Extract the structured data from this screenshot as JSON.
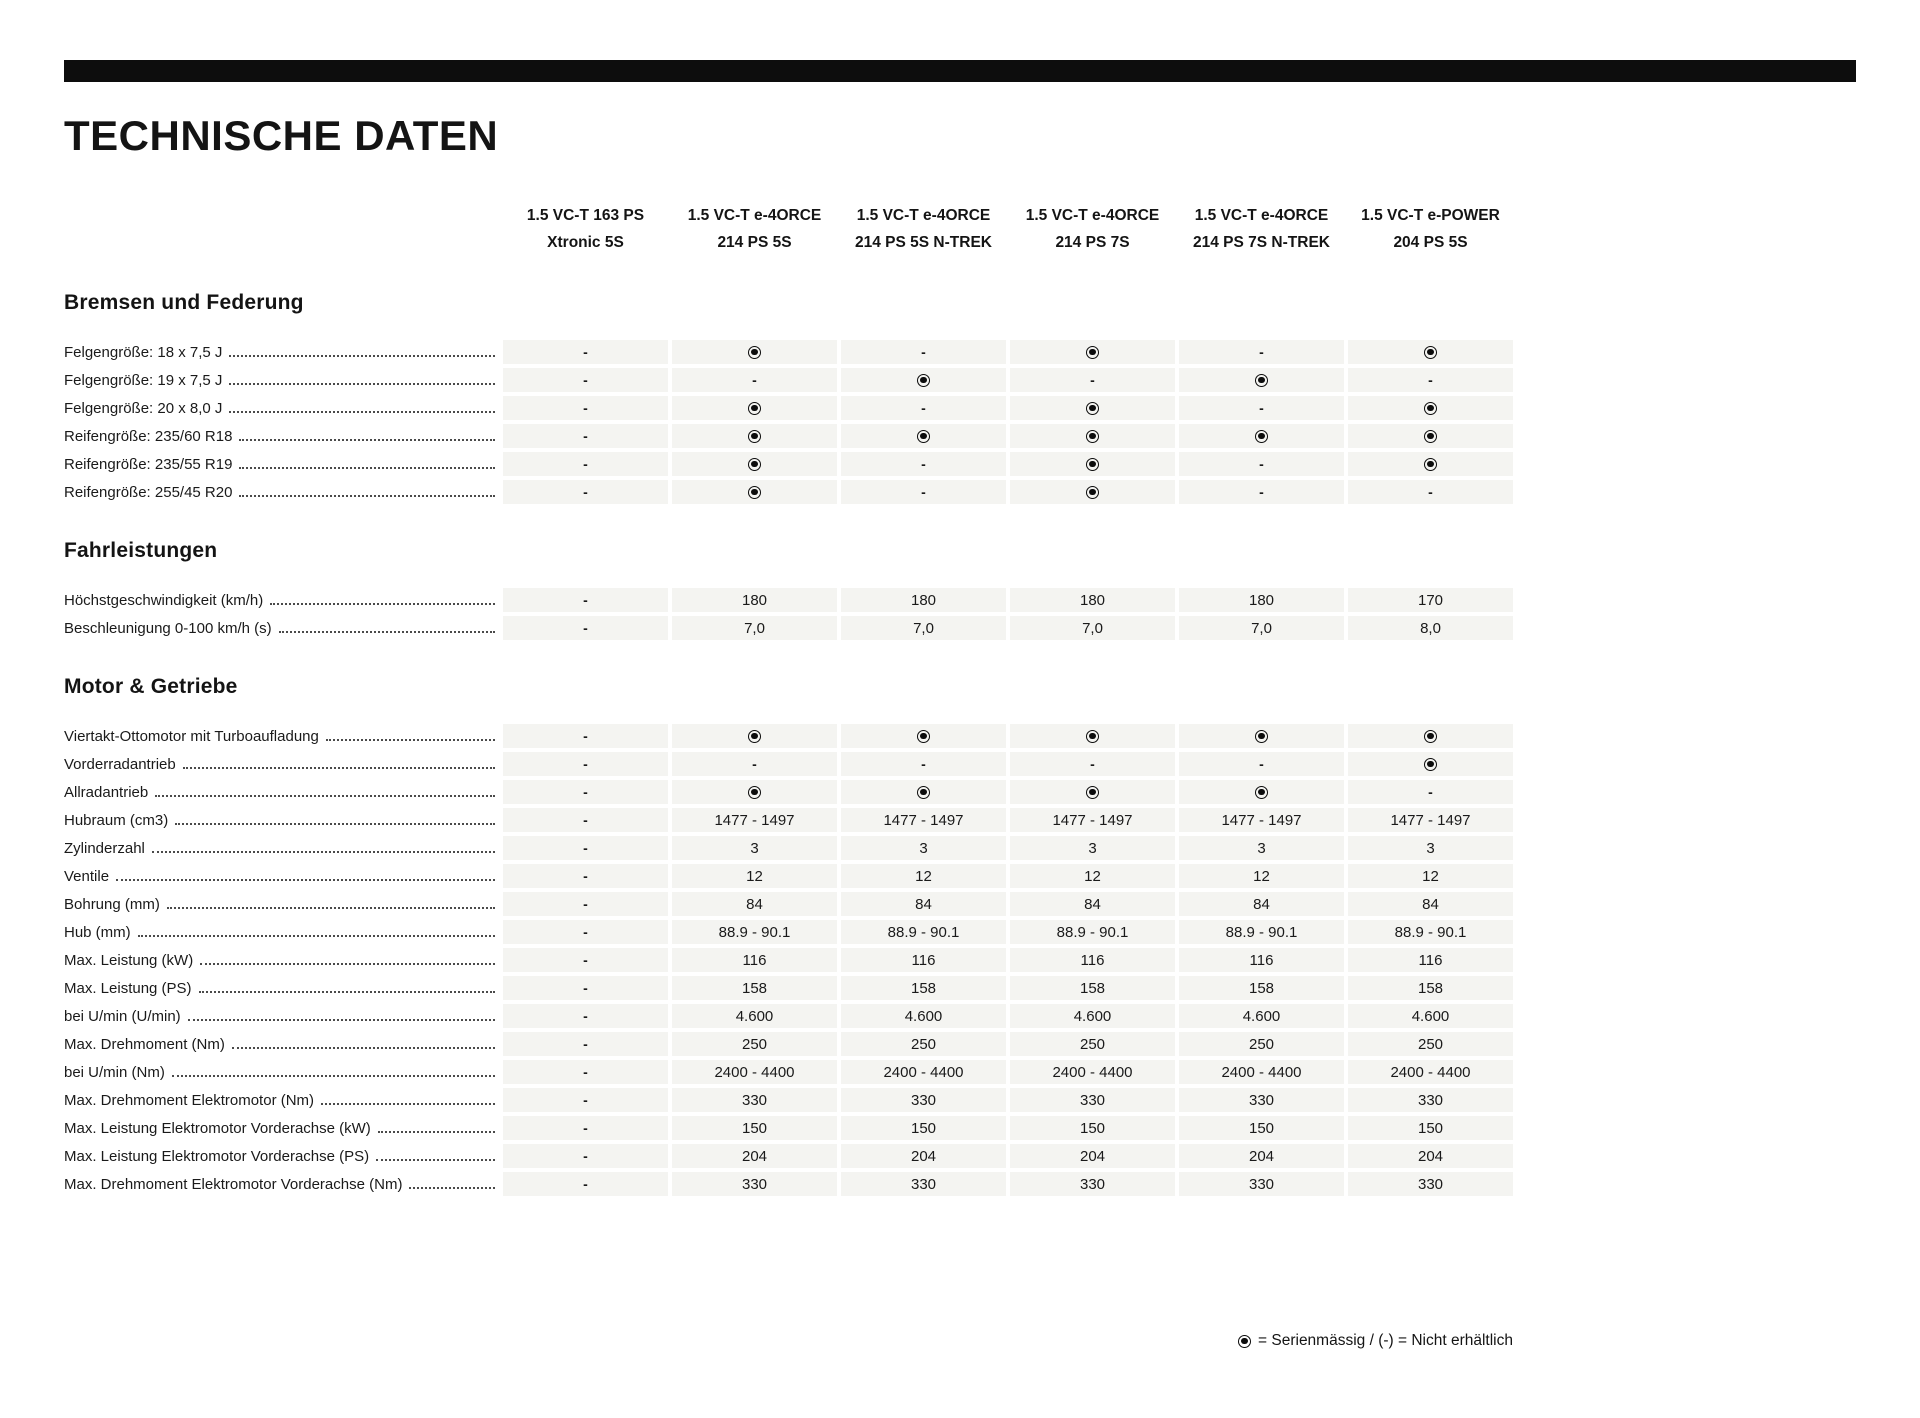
{
  "page": {
    "title": "TECHNISCHE DATEN",
    "legend_text": "= Serienmässig / (-) = Nicht erhältlich"
  },
  "icons": {
    "standard_equipment": "filled-radio-dot"
  },
  "colors": {
    "top_bar": "#0d0d0d",
    "cell_background": "#f4f4f1",
    "text": "#1a1a1a"
  },
  "symbols": {
    "standard": "dot",
    "not_available": "-"
  },
  "columns": [
    {
      "line1": "1.5 VC-T 163 PS",
      "line2": "Xtronic 5S"
    },
    {
      "line1": "1.5 VC-T e-4ORCE",
      "line2": "214 PS 5S"
    },
    {
      "line1": "1.5 VC-T e-4ORCE",
      "line2": "214 PS 5S N-TREK"
    },
    {
      "line1": "1.5 VC-T e-4ORCE",
      "line2": "214 PS 7S"
    },
    {
      "line1": "1.5 VC-T e-4ORCE",
      "line2": "214 PS 7S N-TREK"
    },
    {
      "line1": "1.5 VC-T e-POWER",
      "line2": "204 PS 5S"
    }
  ],
  "sections": [
    {
      "title": "Bremsen und Federung",
      "rows": [
        {
          "label": "Felgengröße: 18 x 7,5 J",
          "values": [
            "-",
            "dot",
            "-",
            "dot",
            "-",
            "dot"
          ]
        },
        {
          "label": "Felgengröße: 19 x 7,5 J",
          "values": [
            "-",
            "-",
            "dot",
            "-",
            "dot",
            "-"
          ]
        },
        {
          "label": "Felgengröße: 20 x 8,0 J",
          "values": [
            "-",
            "dot",
            "-",
            "dot",
            "-",
            "dot"
          ]
        },
        {
          "label": "Reifengröße: 235/60 R18",
          "values": [
            "-",
            "dot",
            "dot",
            "dot",
            "dot",
            "dot"
          ]
        },
        {
          "label": "Reifengröße: 235/55 R19",
          "values": [
            "-",
            "dot",
            "-",
            "dot",
            "-",
            "dot"
          ]
        },
        {
          "label": "Reifengröße: 255/45 R20",
          "values": [
            "-",
            "dot",
            "-",
            "dot",
            "-",
            "-"
          ]
        }
      ]
    },
    {
      "title": "Fahrleistungen",
      "rows": [
        {
          "label": "Höchstgeschwindigkeit (km/h)",
          "values": [
            "-",
            "180",
            "180",
            "180",
            "180",
            "170"
          ]
        },
        {
          "label": "Beschleunigung 0-100 km/h (s)",
          "values": [
            "-",
            "7,0",
            "7,0",
            "7,0",
            "7,0",
            "8,0"
          ]
        }
      ]
    },
    {
      "title": "Motor & Getriebe",
      "rows": [
        {
          "label": "Viertakt-Ottomotor mit Turboaufladung",
          "values": [
            "-",
            "dot",
            "dot",
            "dot",
            "dot",
            "dot"
          ]
        },
        {
          "label": "Vorderradantrieb",
          "values": [
            "-",
            "-",
            "-",
            "-",
            "-",
            "dot"
          ]
        },
        {
          "label": "Allradantrieb",
          "values": [
            "-",
            "dot",
            "dot",
            "dot",
            "dot",
            "-"
          ]
        },
        {
          "label": "Hubraum (cm3)",
          "values": [
            "-",
            "1477 - 1497",
            "1477 - 1497",
            "1477 - 1497",
            "1477 - 1497",
            "1477 - 1497"
          ]
        },
        {
          "label": "Zylinderzahl",
          "values": [
            "-",
            "3",
            "3",
            "3",
            "3",
            "3"
          ]
        },
        {
          "label": "Ventile",
          "values": [
            "-",
            "12",
            "12",
            "12",
            "12",
            "12"
          ]
        },
        {
          "label": "Bohrung (mm)",
          "values": [
            "-",
            "84",
            "84",
            "84",
            "84",
            "84"
          ]
        },
        {
          "label": "Hub (mm)",
          "values": [
            "-",
            "88.9 - 90.1",
            "88.9 - 90.1",
            "88.9 - 90.1",
            "88.9 - 90.1",
            "88.9 - 90.1"
          ]
        },
        {
          "label": "Max. Leistung (kW)",
          "values": [
            "-",
            "116",
            "116",
            "116",
            "116",
            "116"
          ]
        },
        {
          "label": "Max. Leistung (PS)",
          "values": [
            "-",
            "158",
            "158",
            "158",
            "158",
            "158"
          ]
        },
        {
          "label": "bei U/min (U/min)",
          "values": [
            "-",
            "4.600",
            "4.600",
            "4.600",
            "4.600",
            "4.600"
          ]
        },
        {
          "label": "Max. Drehmoment (Nm)",
          "values": [
            "-",
            "250",
            "250",
            "250",
            "250",
            "250"
          ]
        },
        {
          "label": "bei U/min (Nm)",
          "values": [
            "-",
            "2400 - 4400",
            "2400 - 4400",
            "2400 - 4400",
            "2400 - 4400",
            "2400 - 4400"
          ]
        },
        {
          "label": "Max. Drehmoment Elektromotor (Nm)",
          "values": [
            "-",
            "330",
            "330",
            "330",
            "330",
            "330"
          ]
        },
        {
          "label": "Max. Leistung Elektromotor Vorderachse (kW)",
          "values": [
            "-",
            "150",
            "150",
            "150",
            "150",
            "150"
          ]
        },
        {
          "label": "Max. Leistung Elektromotor Vorderachse (PS)",
          "values": [
            "-",
            "204",
            "204",
            "204",
            "204",
            "204"
          ]
        },
        {
          "label": "Max. Drehmoment Elektromotor Vorderachse (Nm)",
          "values": [
            "-",
            "330",
            "330",
            "330",
            "330",
            "330"
          ]
        }
      ]
    }
  ]
}
